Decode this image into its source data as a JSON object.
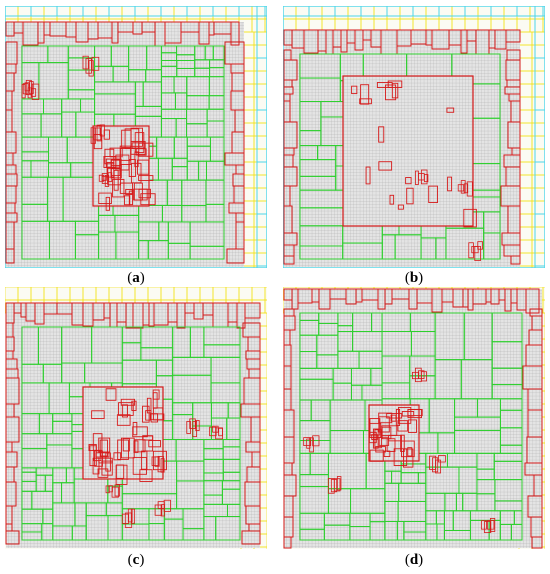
{
  "colors": {
    "background": "#ffffff",
    "mesh_fill": "#d9d9d9",
    "mesh_line": "#9a9a9a",
    "outer_yellow": "#f2e21a",
    "outer_cyan": "#4dd6ea",
    "block_green": "#2fcf2f",
    "block_red": "#d61a1a"
  },
  "panels": [
    {
      "id": "a",
      "caption": "a"
    },
    {
      "id": "b",
      "caption": "b"
    },
    {
      "id": "c",
      "caption": "c"
    },
    {
      "id": "d",
      "caption": "d"
    }
  ]
}
